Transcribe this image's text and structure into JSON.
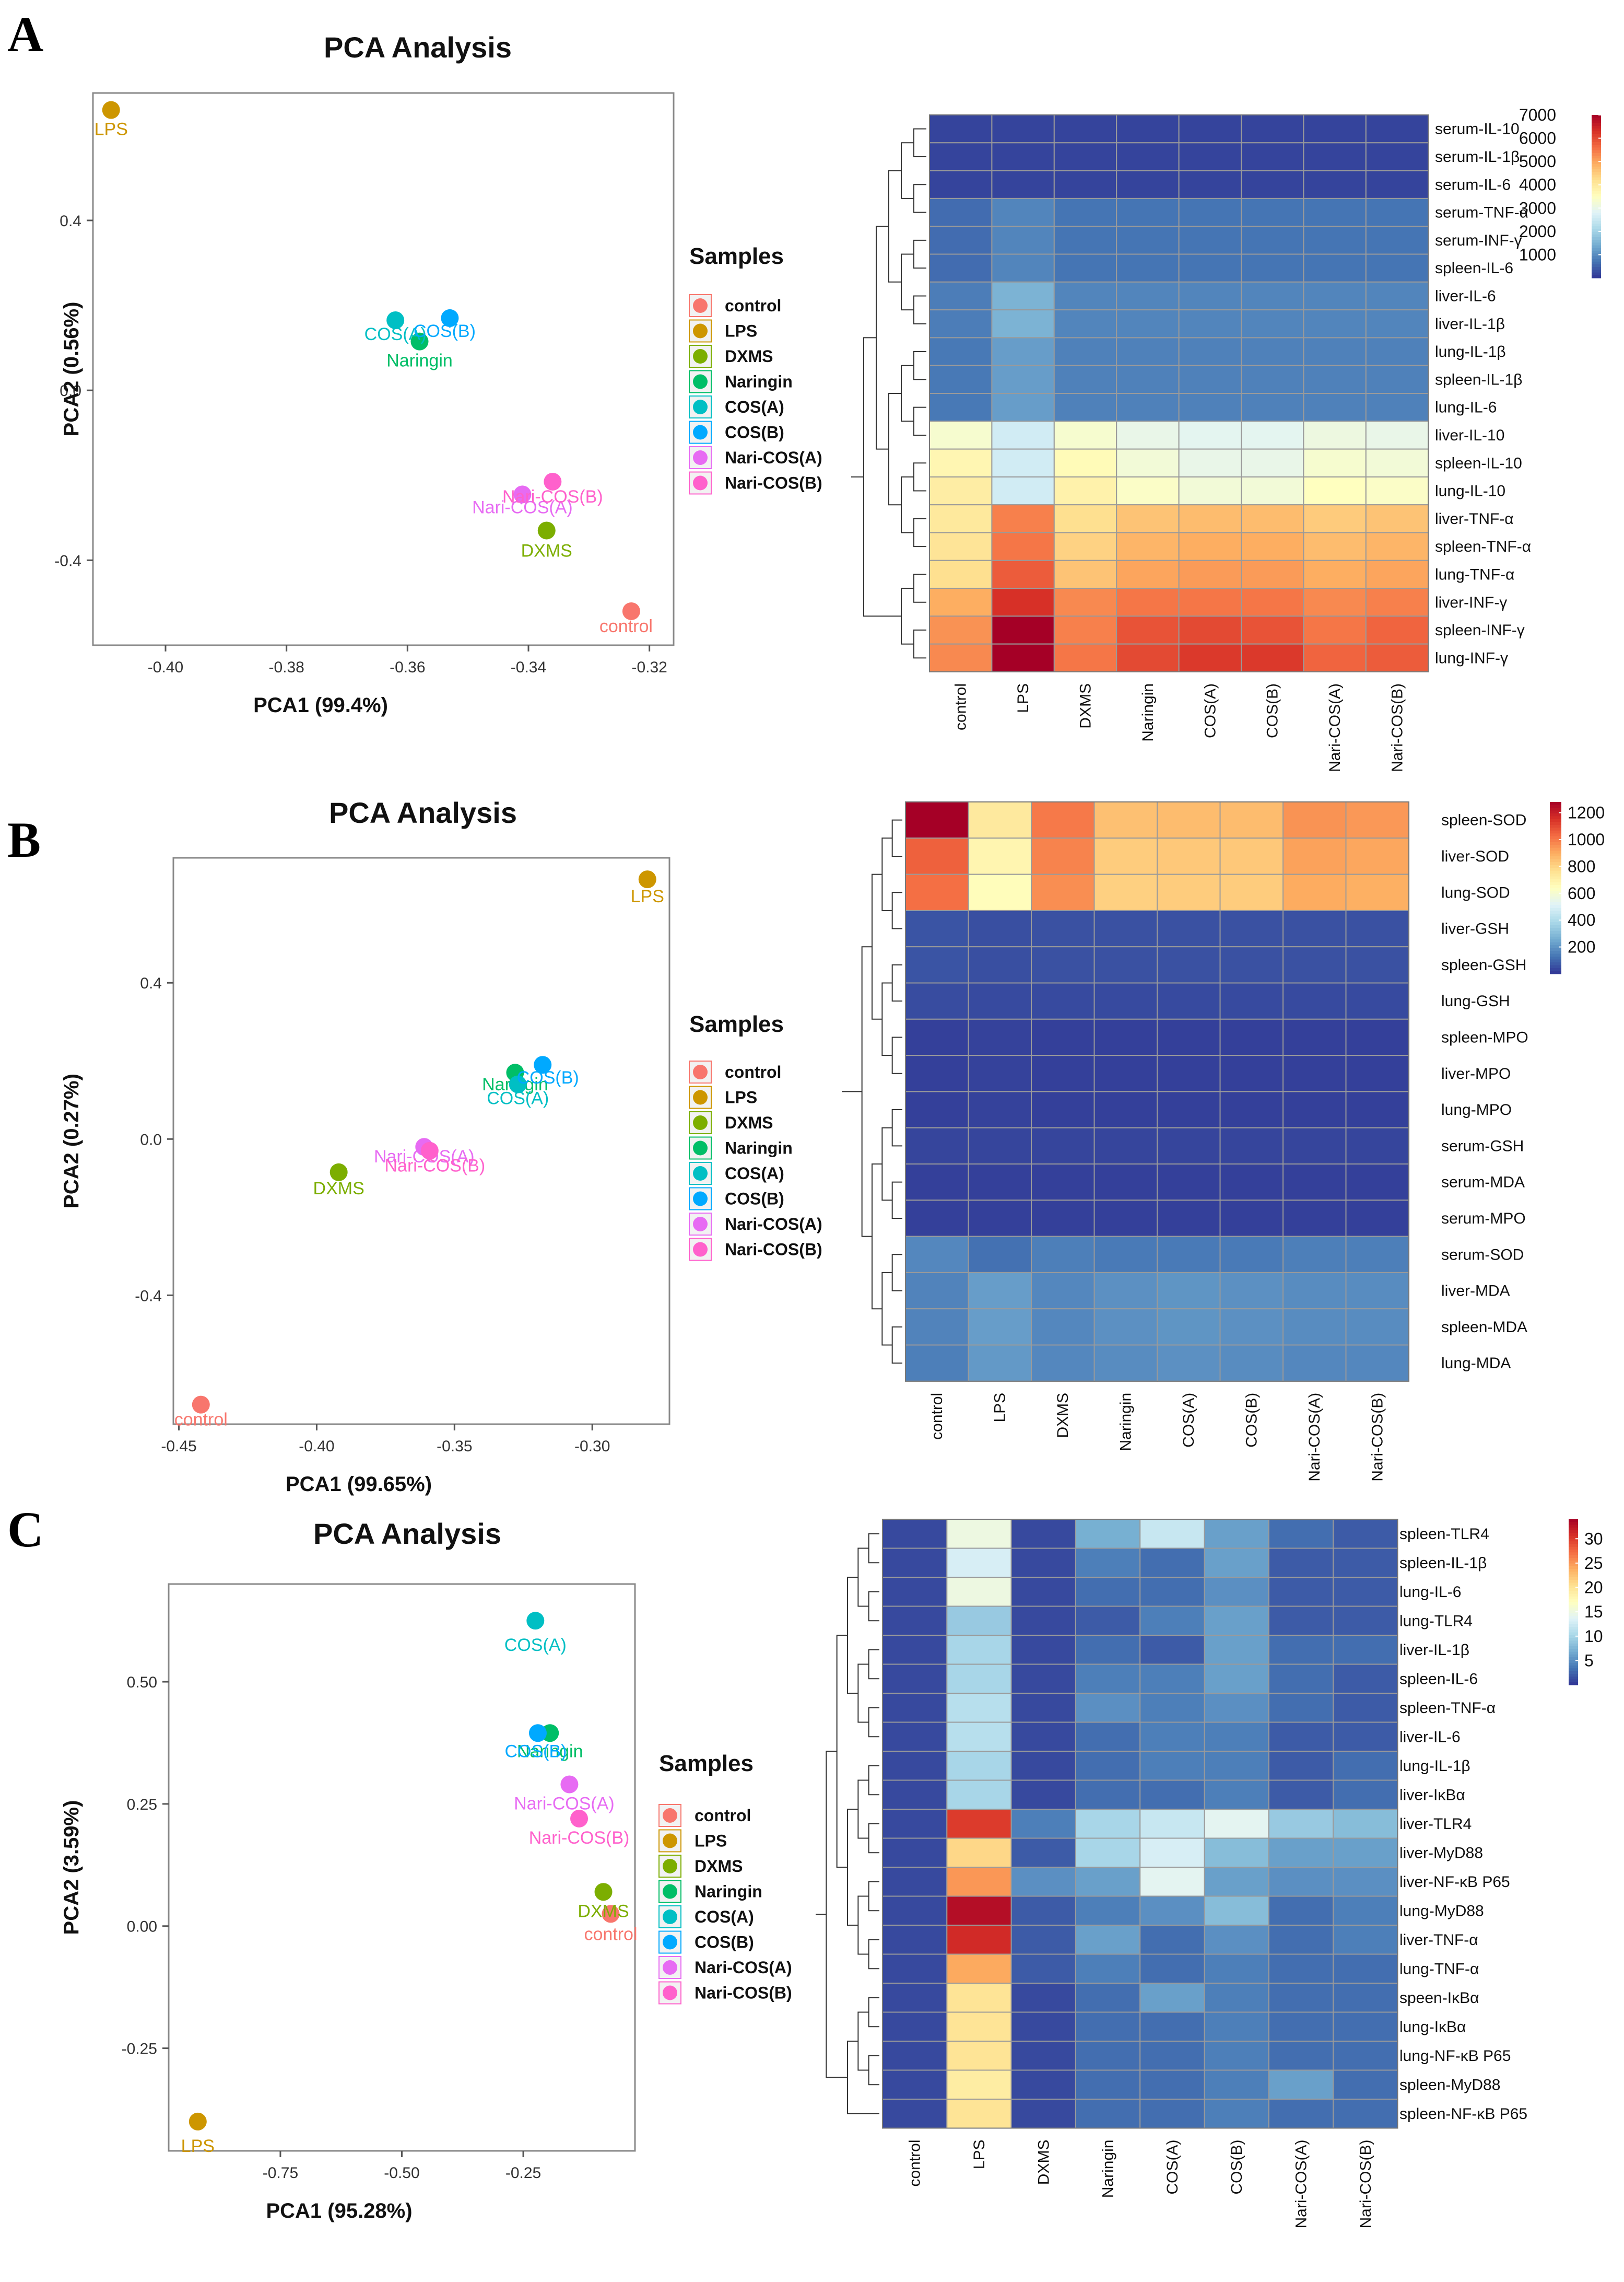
{
  "figure": {
    "panels": [
      "A",
      "B",
      "C"
    ]
  },
  "chart_data": [
    {
      "panel": "A",
      "type": "scatter",
      "title": "PCA Analysis",
      "xlabel": "PCA1 (99.4%)",
      "ylabel": "PCA2 (0.56%)",
      "xlim": [
        -0.412,
        -0.316
      ],
      "ylim": [
        -0.6,
        0.7
      ],
      "xticks": [
        -0.4,
        -0.38,
        -0.36,
        -0.34,
        -0.32
      ],
      "xtick_labels": [
        "-0.40",
        "-0.38",
        "-0.36",
        "-0.34",
        "-0.32"
      ],
      "yticks": [
        0.4,
        0.0,
        -0.4
      ],
      "ytick_labels": [
        "0.4",
        "0.0",
        "-0.4"
      ],
      "legend_title": "Samples",
      "points": [
        {
          "label": "control",
          "x": -0.323,
          "y": -0.52
        },
        {
          "label": "LPS",
          "x": -0.409,
          "y": 0.66
        },
        {
          "label": "DXMS",
          "x": -0.337,
          "y": -0.33
        },
        {
          "label": "Naringin",
          "x": -0.358,
          "y": 0.115
        },
        {
          "label": "COS(A)",
          "x": -0.362,
          "y": 0.165
        },
        {
          "label": "COS(B)",
          "x": -0.353,
          "y": 0.17
        },
        {
          "label": "Nari-COS(A)",
          "x": -0.341,
          "y": -0.245
        },
        {
          "label": "Nari-COS(B)",
          "x": -0.336,
          "y": -0.215
        }
      ]
    },
    {
      "panel": "B",
      "type": "scatter",
      "title": "PCA Analysis",
      "xlabel": "PCA1 (99.65%)",
      "ylabel": "PCA2 (0.27%)",
      "xlim": [
        -0.452,
        -0.272
      ],
      "ylim": [
        -0.73,
        0.72
      ],
      "xticks": [
        -0.45,
        -0.4,
        -0.35,
        -0.3
      ],
      "xtick_labels": [
        "-0.45",
        "-0.40",
        "-0.35",
        "-0.30"
      ],
      "yticks": [
        0.4,
        0.0,
        -0.4
      ],
      "ytick_labels": [
        "0.4",
        "0.0",
        "-0.4"
      ],
      "legend_title": "Samples",
      "points": [
        {
          "label": "control",
          "x": -0.442,
          "y": -0.68
        },
        {
          "label": "LPS",
          "x": -0.28,
          "y": 0.665
        },
        {
          "label": "DXMS",
          "x": -0.392,
          "y": -0.085
        },
        {
          "label": "Naringin",
          "x": -0.328,
          "y": 0.17
        },
        {
          "label": "COS(A)",
          "x": -0.327,
          "y": 0.14
        },
        {
          "label": "COS(B)",
          "x": -0.318,
          "y": 0.19
        },
        {
          "label": "Nari-COS(A)",
          "x": -0.361,
          "y": -0.02
        },
        {
          "label": "Nari-COS(B)",
          "x": -0.359,
          "y": -0.03
        }
      ]
    },
    {
      "panel": "C",
      "type": "scatter",
      "title": "PCA Analysis",
      "xlabel": "PCA1 (95.28%)",
      "ylabel": "PCA2 (3.59%)",
      "xlim": [
        -0.98,
        -0.02
      ],
      "ylim": [
        -0.46,
        0.7
      ],
      "xticks": [
        -0.75,
        -0.5,
        -0.25
      ],
      "xtick_labels": [
        "-0.75",
        "-0.50",
        "-0.25"
      ],
      "yticks": [
        0.5,
        0.25,
        0.0,
        -0.25
      ],
      "ytick_labels": [
        "0.50",
        "0.25",
        "0.00",
        "-0.25"
      ],
      "legend_title": "Samples",
      "points": [
        {
          "label": "control",
          "x": -0.07,
          "y": 0.025
        },
        {
          "label": "LPS",
          "x": -0.92,
          "y": -0.4
        },
        {
          "label": "DXMS",
          "x": -0.085,
          "y": 0.07
        },
        {
          "label": "Naringin",
          "x": -0.195,
          "y": 0.395
        },
        {
          "label": "COS(A)",
          "x": -0.225,
          "y": 0.625
        },
        {
          "label": "COS(B)",
          "x": -0.22,
          "y": 0.395
        },
        {
          "label": "Nari-COS(A)",
          "x": -0.155,
          "y": 0.29
        },
        {
          "label": "Nari-COS(B)",
          "x": -0.135,
          "y": 0.22
        }
      ]
    },
    {
      "panel": "A",
      "type": "heatmap",
      "columns": [
        "control",
        "LPS",
        "DXMS",
        "Naringin",
        "COS(A)",
        "COS(B)",
        "Nari-COS(A)",
        "Nari-COS(B)"
      ],
      "rows": [
        "serum-IL-10",
        "serum-IL-1β",
        "serum-IL-6",
        "serum-TNF-α",
        "serum-INF-γ",
        "spleen-IL-6",
        "liver-IL-6",
        "liver-IL-1β",
        "lung-IL-1β",
        "spleen-IL-1β",
        "lung-IL-6",
        "liver-IL-10",
        "spleen-IL-10",
        "lung-IL-10",
        "liver-TNF-α",
        "spleen-TNF-α",
        "lung-TNF-α",
        "liver-INF-γ",
        "spleen-INF-γ",
        "lung-INF-γ"
      ],
      "values": [
        [
          150,
          150,
          150,
          150,
          150,
          150,
          150,
          150
        ],
        [
          150,
          150,
          150,
          150,
          150,
          150,
          150,
          150
        ],
        [
          150,
          150,
          150,
          150,
          150,
          150,
          150,
          150
        ],
        [
          600,
          900,
          700,
          700,
          700,
          700,
          700,
          700
        ],
        [
          600,
          900,
          700,
          700,
          700,
          700,
          700,
          700
        ],
        [
          600,
          900,
          700,
          700,
          700,
          700,
          700,
          700
        ],
        [
          800,
          1500,
          900,
          900,
          900,
          900,
          900,
          900
        ],
        [
          800,
          1500,
          900,
          900,
          900,
          900,
          900,
          900
        ],
        [
          750,
          1200,
          850,
          850,
          850,
          850,
          850,
          850
        ],
        [
          750,
          1200,
          850,
          850,
          850,
          850,
          850,
          850
        ],
        [
          750,
          1200,
          850,
          850,
          850,
          850,
          850,
          850
        ],
        [
          3300,
          2600,
          3300,
          3000,
          2900,
          2900,
          3100,
          3000
        ],
        [
          3700,
          2600,
          3600,
          3200,
          3000,
          3000,
          3300,
          3200
        ],
        [
          3900,
          2600,
          3800,
          3400,
          3200,
          3200,
          3500,
          3400
        ],
        [
          4000,
          5400,
          4200,
          4600,
          4700,
          4700,
          4500,
          4600
        ],
        [
          4100,
          5500,
          4400,
          4800,
          4900,
          4900,
          4700,
          4800
        ],
        [
          4200,
          5800,
          4600,
          5000,
          5100,
          5100,
          4900,
          5000
        ],
        [
          4900,
          6300,
          5300,
          5500,
          5500,
          5500,
          5300,
          5400
        ],
        [
          5200,
          7000,
          5400,
          5900,
          6000,
          5900,
          5500,
          5700
        ],
        [
          5300,
          7000,
          5500,
          6000,
          6200,
          6200,
          5700,
          5800
        ]
      ],
      "colorbar": {
        "min": 0,
        "max": 7000,
        "ticks": [
          1000,
          2000,
          3000,
          4000,
          5000,
          6000,
          7000
        ],
        "tick_labels": [
          "1000",
          "2000",
          "3000",
          "4000",
          "5000",
          "6000",
          "7000"
        ]
      }
    },
    {
      "panel": "B",
      "type": "heatmap",
      "columns": [
        "control",
        "LPS",
        "DXMS",
        "Naringin",
        "COS(A)",
        "COS(B)",
        "Nari-COS(A)",
        "Nari-COS(B)"
      ],
      "rows": [
        "spleen-SOD",
        "liver-SOD",
        "lung-SOD",
        "liver-GSH",
        "spleen-GSH",
        "lung-GSH",
        "spleen-MPO",
        "liver-MPO",
        "lung-MPO",
        "serum-GSH",
        "serum-MDA",
        "serum-MPO",
        "serum-SOD",
        "liver-MDA",
        "spleen-MDA",
        "lung-MDA"
      ],
      "values": [
        [
          1280,
          730,
          1000,
          850,
          860,
          860,
          950,
          940
        ],
        [
          1050,
          680,
          980,
          820,
          830,
          830,
          920,
          910
        ],
        [
          1020,
          650,
          960,
          810,
          820,
          820,
          900,
          890
        ],
        [
          60,
          50,
          55,
          55,
          55,
          55,
          55,
          55
        ],
        [
          60,
          50,
          55,
          55,
          55,
          55,
          55,
          55
        ],
        [
          45,
          40,
          40,
          40,
          40,
          40,
          40,
          40
        ],
        [
          20,
          25,
          20,
          20,
          20,
          20,
          20,
          20
        ],
        [
          20,
          25,
          20,
          20,
          20,
          20,
          20,
          20
        ],
        [
          20,
          25,
          20,
          20,
          20,
          20,
          20,
          20
        ],
        [
          30,
          30,
          30,
          30,
          30,
          30,
          30,
          30
        ],
        [
          20,
          20,
          20,
          20,
          20,
          20,
          20,
          20
        ],
        [
          20,
          20,
          20,
          20,
          20,
          20,
          20,
          20
        ],
        [
          170,
          120,
          150,
          140,
          140,
          140,
          150,
          150
        ],
        [
          160,
          220,
          170,
          190,
          200,
          190,
          180,
          180
        ],
        [
          160,
          220,
          170,
          190,
          200,
          190,
          180,
          180
        ],
        [
          150,
          210,
          170,
          180,
          190,
          180,
          170,
          170
        ]
      ],
      "colorbar": {
        "min": 0,
        "max": 1280,
        "ticks": [
          200,
          400,
          600,
          800,
          1000,
          1200
        ],
        "tick_labels": [
          "200",
          "400",
          "600",
          "800",
          "1000",
          "1200"
        ]
      }
    },
    {
      "panel": "C",
      "type": "heatmap",
      "columns": [
        "control",
        "LPS",
        "DXMS",
        "Naringin",
        "COS(A)",
        "COS(B)",
        "Nari-COS(A)",
        "Nari-COS(B)"
      ],
      "rows": [
        "spleen-TLR4",
        "spleen-IL-1β",
        "lung-IL-6",
        "lung-TLR4",
        "liver-IL-1β",
        "spleen-IL-6",
        "spleen-TNF-α",
        "liver-IL-6",
        "lung-IL-1β",
        "liver-IκBα",
        "liver-TLR4",
        "liver-MyD88",
        "liver-NF-κB P65",
        "lung-MyD88",
        "liver-TNF-α",
        "lung-TNF-α",
        "speen-IκBα",
        "lung-IκBα",
        "lung-NF-κB P65",
        "spleen-MyD88",
        "spleen-NF-κB P65"
      ],
      "values": [
        [
          1,
          15,
          1,
          7,
          12,
          6,
          3,
          2
        ],
        [
          1,
          13,
          1,
          4,
          3,
          6,
          2,
          2
        ],
        [
          1,
          15,
          1,
          3,
          3,
          5,
          2,
          2
        ],
        [
          1,
          9,
          1,
          2,
          4,
          6,
          2,
          2
        ],
        [
          1,
          10,
          1,
          3,
          2,
          6,
          3,
          3
        ],
        [
          1,
          10,
          1,
          4,
          4,
          6,
          3,
          2
        ],
        [
          1,
          11,
          1,
          5,
          4,
          5,
          3,
          2
        ],
        [
          1,
          11,
          1,
          3,
          4,
          4,
          2,
          2
        ],
        [
          1,
          10,
          1,
          3,
          4,
          4,
          2,
          3
        ],
        [
          1,
          10,
          1,
          3,
          3,
          4,
          2,
          3
        ],
        [
          1,
          30,
          4,
          10,
          12,
          14,
          9,
          8
        ],
        [
          1,
          21,
          2,
          10,
          13,
          8,
          6,
          6
        ],
        [
          1,
          25,
          5,
          6,
          14,
          6,
          5,
          5
        ],
        [
          1,
          33,
          2,
          4,
          5,
          8,
          3,
          4
        ],
        [
          1,
          31,
          2,
          6,
          3,
          5,
          3,
          4
        ],
        [
          1,
          24,
          2,
          4,
          3,
          4,
          3,
          3
        ],
        [
          1,
          20,
          1,
          3,
          6,
          4,
          3,
          3
        ],
        [
          1,
          20,
          1,
          3,
          3,
          4,
          3,
          3
        ],
        [
          1,
          20,
          1,
          3,
          3,
          4,
          3,
          3
        ],
        [
          1,
          19,
          1,
          3,
          3,
          4,
          6,
          3
        ],
        [
          1,
          20,
          1,
          3,
          3,
          4,
          3,
          3
        ]
      ],
      "colorbar": {
        "min": 0,
        "max": 34,
        "ticks": [
          5,
          10,
          15,
          20,
          25,
          30
        ],
        "tick_labels": [
          "5",
          "10",
          "15",
          "20",
          "25",
          "30"
        ]
      }
    }
  ],
  "sample_colors": {
    "control": "#F8766D",
    "LPS": "#CD9600",
    "DXMS": "#7CAE00",
    "Naringin": "#00BE67",
    "COS(A)": "#00BFC4",
    "COS(B)": "#00A9FF",
    "Nari-COS(A)": "#E76BF3",
    "Nari-COS(B)": "#FF61CC"
  },
  "heatmap_palette": [
    "#313695",
    "#4575B4",
    "#74ADD1",
    "#ABD9E9",
    "#E0F3F8",
    "#FFFFBF",
    "#FEE090",
    "#FDAE61",
    "#F46D43",
    "#D73027",
    "#A50026"
  ]
}
